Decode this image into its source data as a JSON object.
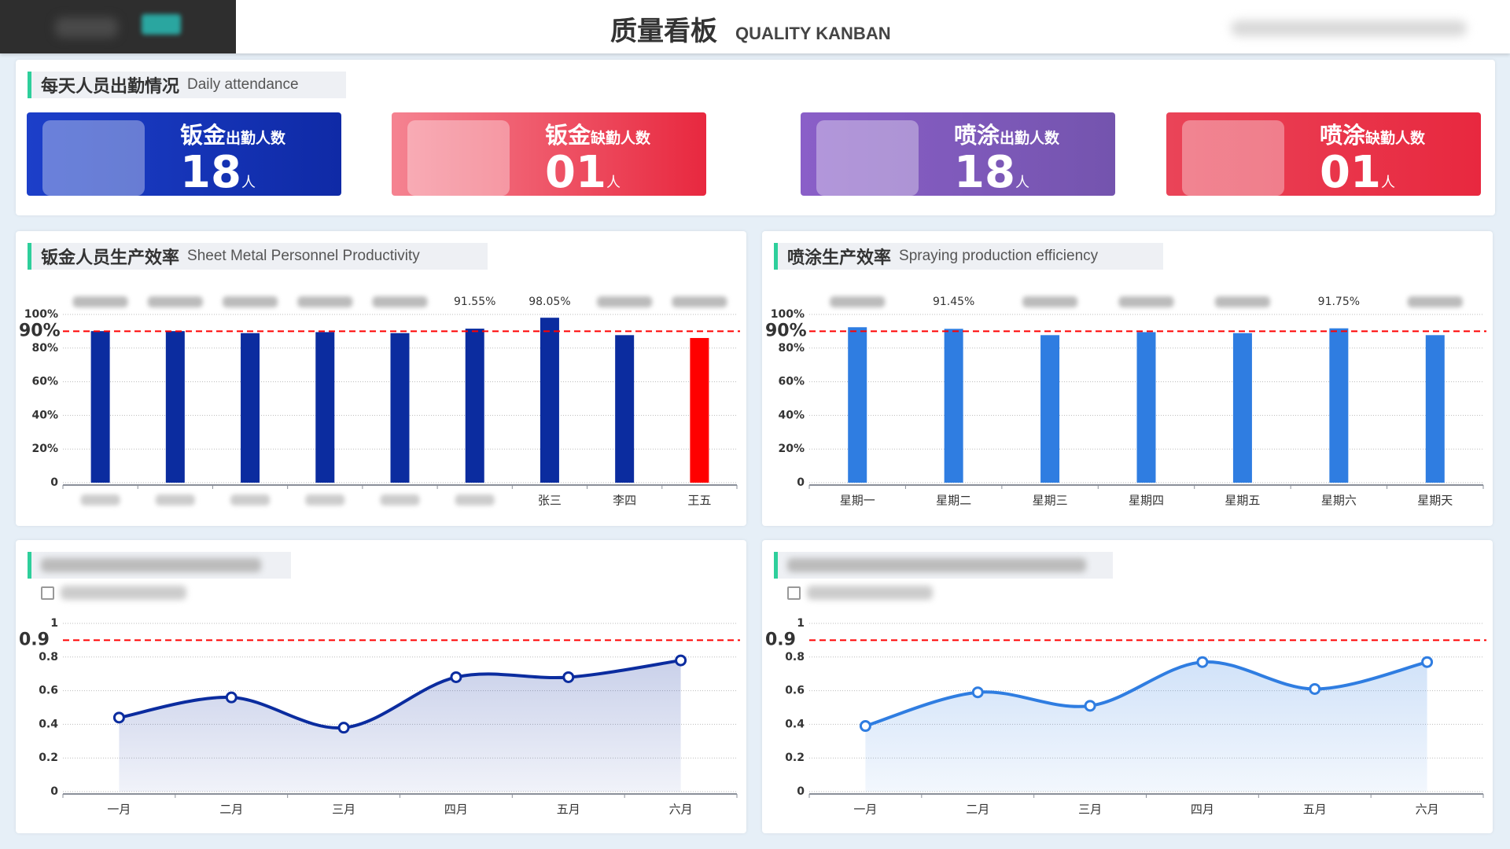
{
  "header": {
    "title": "质量看板",
    "subtitle": "QUALITY KANBAN"
  },
  "attendance": {
    "title": "每天人员出勤情况",
    "subtitle": "Daily attendance",
    "cards": [
      {
        "name": "钣金",
        "label": "出勤人数",
        "value": "18",
        "unit": "人"
      },
      {
        "name": "钣金",
        "label": "缺勤人数",
        "value": "01",
        "unit": "人"
      },
      {
        "name": "喷涂",
        "label": "出勤人数",
        "value": "18",
        "unit": "人"
      },
      {
        "name": "喷涂",
        "label": "缺勤人数",
        "value": "01",
        "unit": "人"
      }
    ]
  },
  "chart_data": [
    {
      "type": "bar",
      "title": "钣金人员生产效率",
      "subtitle": "Sheet Metal Personnel Productivity",
      "categories": [
        null,
        null,
        null,
        null,
        null,
        null,
        "张三",
        "李四",
        "王五"
      ],
      "values": [
        90.1,
        90.1,
        88.9,
        89.5,
        88.9,
        91.55,
        98.05,
        87.7,
        86.0
      ],
      "value_labels": [
        null,
        null,
        null,
        null,
        null,
        "91.55%",
        "98.05%",
        null,
        null
      ],
      "colors": [
        "#0b2c9f",
        "#0b2c9f",
        "#0b2c9f",
        "#0b2c9f",
        "#0b2c9f",
        "#0b2c9f",
        "#0b2c9f",
        "#0b2c9f",
        "#ff0000"
      ],
      "ylim": [
        0,
        100
      ],
      "yticks": [
        0,
        {
          "value": 20,
          "label": "20%"
        },
        {
          "value": 40,
          "label": "40%"
        },
        {
          "value": 60,
          "label": "60%"
        },
        {
          "value": 80,
          "label": "80%"
        },
        {
          "value": 100,
          "label": "100%"
        }
      ],
      "threshold": {
        "value": 90,
        "label": "90%"
      },
      "grid": true
    },
    {
      "type": "bar",
      "title": "喷涂生产效率",
      "subtitle": "Spraying production efficiency",
      "categories": [
        "星期一",
        "星期二",
        "星期三",
        "星期四",
        "星期五",
        "星期六",
        "星期天"
      ],
      "values": [
        92.4,
        91.45,
        87.7,
        89.5,
        88.9,
        91.75,
        87.7
      ],
      "value_labels": [
        null,
        "91.45%",
        null,
        null,
        null,
        "91.75%",
        null
      ],
      "color": "#2f7de1",
      "ylim": [
        0,
        100
      ],
      "yticks": [
        0,
        {
          "value": 20,
          "label": "20%"
        },
        {
          "value": 40,
          "label": "40%"
        },
        {
          "value": 60,
          "label": "60%"
        },
        {
          "value": 80,
          "label": "80%"
        },
        {
          "value": 100,
          "label": "100%"
        }
      ],
      "threshold": {
        "value": 90,
        "label": "90%"
      },
      "grid": true
    },
    {
      "type": "line",
      "categories": [
        "一月",
        "二月",
        "三月",
        "四月",
        "五月",
        "六月"
      ],
      "values": [
        0.44,
        0.56,
        0.38,
        0.68,
        0.68,
        0.78
      ],
      "color": "#0b2c9f",
      "ylim": [
        0,
        1
      ],
      "yticks": [
        0,
        0.2,
        0.4,
        0.6,
        0.8,
        1
      ],
      "threshold": 0.9,
      "grid": true
    },
    {
      "type": "line",
      "categories": [
        "一月",
        "二月",
        "三月",
        "四月",
        "五月",
        "六月"
      ],
      "values": [
        0.39,
        0.59,
        0.51,
        0.77,
        0.61,
        0.77
      ],
      "color": "#2f7de1",
      "ylim": [
        0,
        1
      ],
      "yticks": [
        0,
        0.2,
        0.4,
        0.6,
        0.8,
        1
      ],
      "threshold": 0.9,
      "grid": true
    }
  ]
}
